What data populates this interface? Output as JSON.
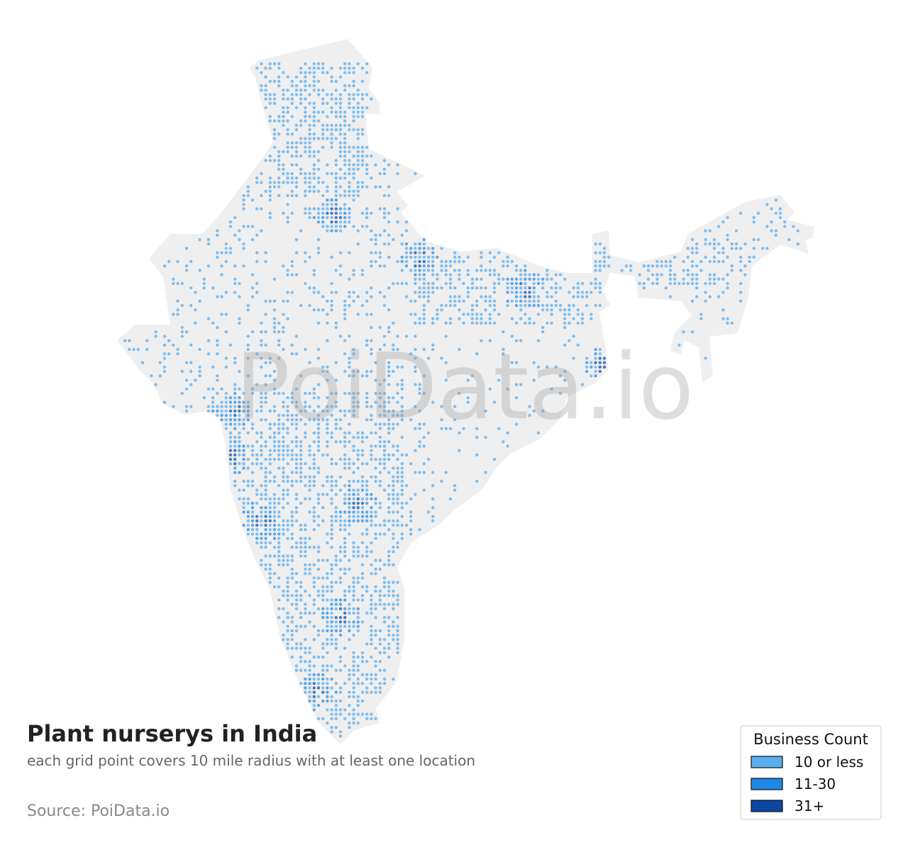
{
  "map": {
    "title": "Plant nurserys in India",
    "subtitle": "each grid point covers 10 mile radius with at least one location",
    "source": "Source: PoiData.io",
    "watermark": "PoiData.io",
    "legend": {
      "title": "Business Count",
      "items": [
        {
          "label": "10 or less",
          "color": "#5aaef0"
        },
        {
          "label": "11-30",
          "color": "#1e88e5"
        },
        {
          "label": "31+",
          "color": "#0d47a1"
        }
      ]
    }
  }
}
